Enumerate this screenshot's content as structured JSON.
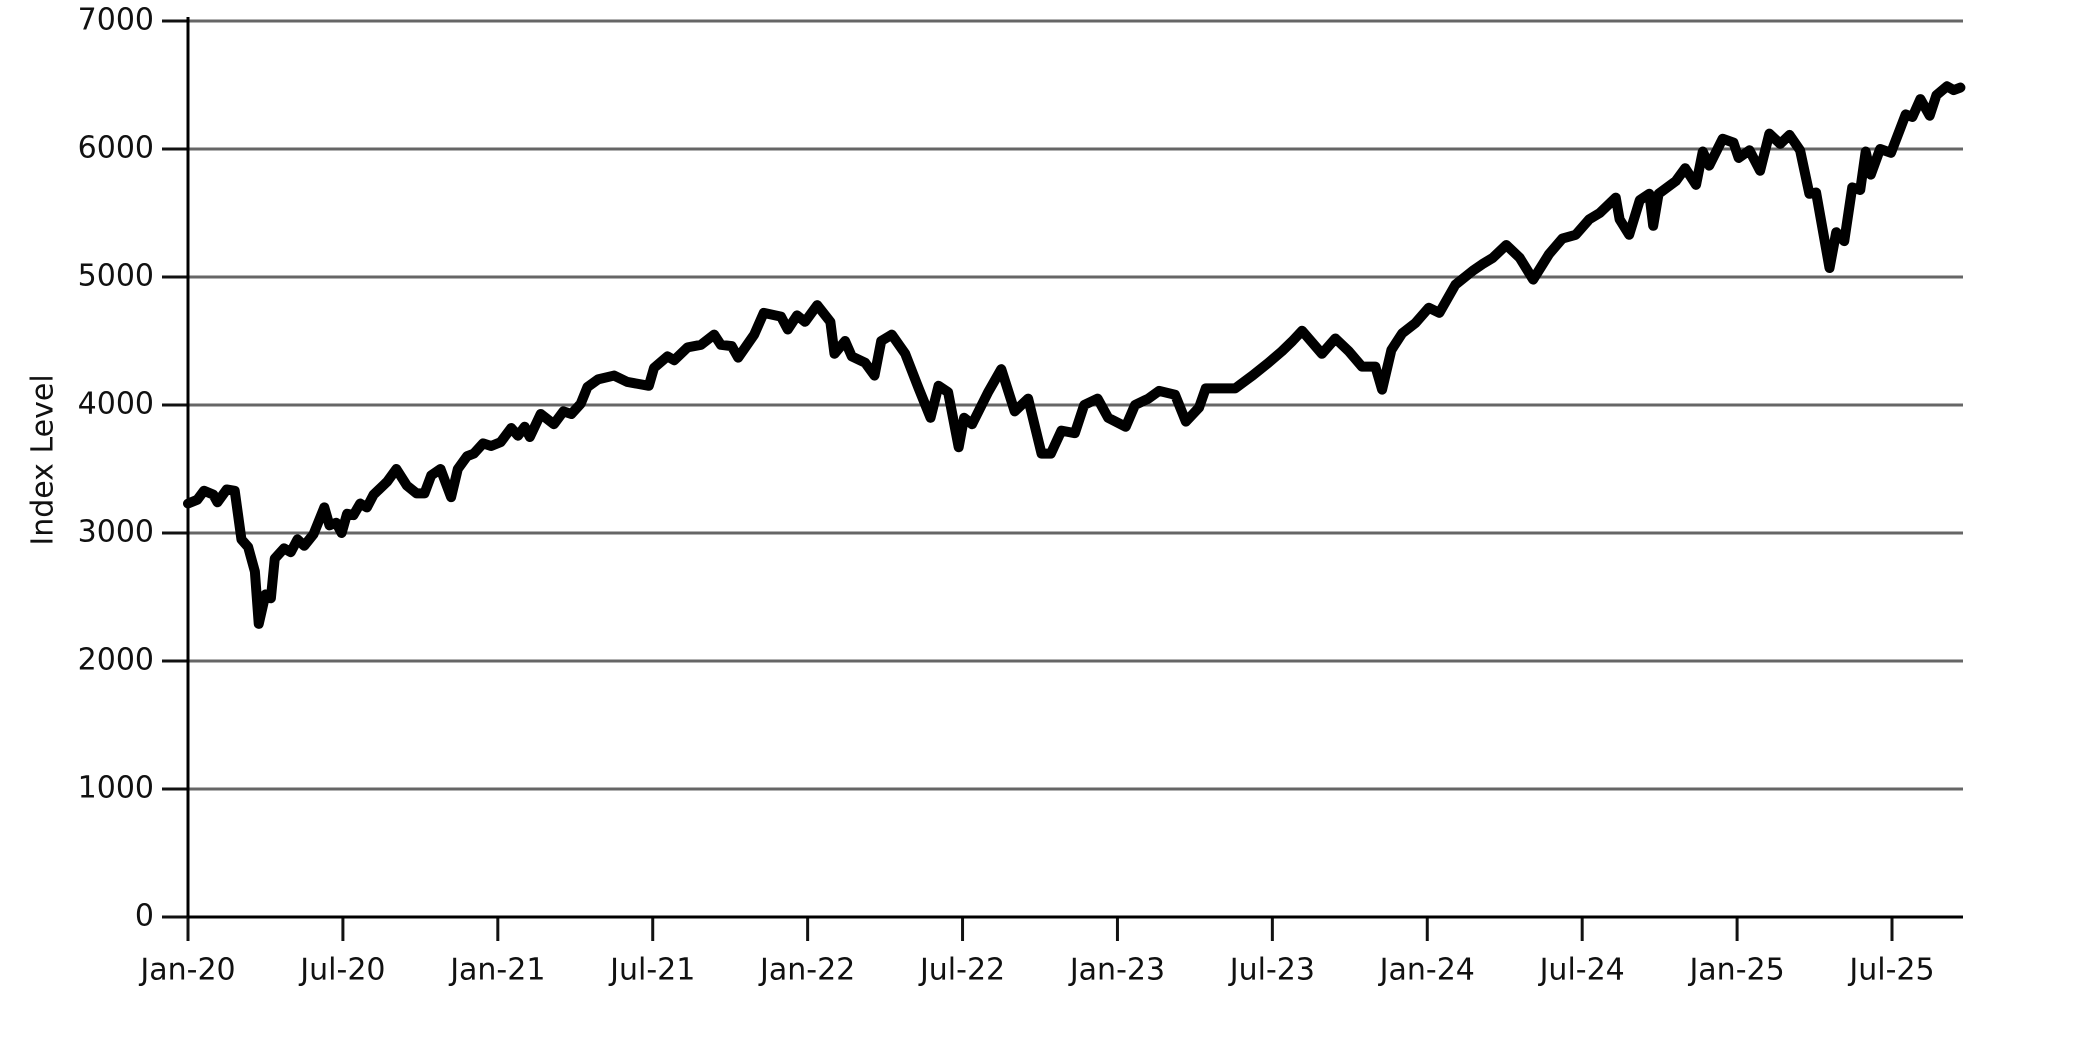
{
  "chart_data": {
    "type": "line",
    "y_label": "Index Level",
    "color": "#000000",
    "grid": true,
    "xlim": [
      0,
      68.75
    ],
    "ylim": [
      0,
      7000
    ],
    "yticks": [
      0,
      1000,
      2000,
      3000,
      4000,
      5000,
      6000,
      7000
    ],
    "xticks": [
      {
        "value": 0,
        "label": "Jan-20"
      },
      {
        "value": 6,
        "label": "Jul-20"
      },
      {
        "value": 12,
        "label": "Jan-21"
      },
      {
        "value": 18,
        "label": "Jul-21"
      },
      {
        "value": 24,
        "label": "Jan-22"
      },
      {
        "value": 30,
        "label": "Jul-22"
      },
      {
        "value": 36,
        "label": "Jan-23"
      },
      {
        "value": 42,
        "label": "Jul-23"
      },
      {
        "value": 48,
        "label": "Jan-24"
      },
      {
        "value": 54,
        "label": "Jul-24"
      },
      {
        "value": 60,
        "label": "Jan-25"
      },
      {
        "value": 66,
        "label": "Jul-25"
      }
    ],
    "x": [
      0,
      0.36,
      0.62,
      0.98,
      1.14,
      1.5,
      1.81,
      2.07,
      2.33,
      2.59,
      2.74,
      3.0,
      3.21,
      3.36,
      3.72,
      3.98,
      4.24,
      4.5,
      4.86,
      5.28,
      5.48,
      5.74,
      5.95,
      6.16,
      6.41,
      6.67,
      6.93,
      7.19,
      7.71,
      8.07,
      8.48,
      8.85,
      9.16,
      9.42,
      9.78,
      10.19,
      10.45,
      10.81,
      11.07,
      11.43,
      11.74,
      12.11,
      12.52,
      12.78,
      13.04,
      13.24,
      13.66,
      14.17,
      14.54,
      14.85,
      15.21,
      15.47,
      15.88,
      16.5,
      17.02,
      17.85,
      18.05,
      18.57,
      18.83,
      19.35,
      19.87,
      20.38,
      20.64,
      21.06,
      21.31,
      21.93,
      22.3,
      22.97,
      23.23,
      23.59,
      23.9,
      24.37,
      24.88,
      25.04,
      25.45,
      25.71,
      26.23,
      26.59,
      26.85,
      27.26,
      27.78,
      28.3,
      28.76,
      29.07,
      29.44,
      29.85,
      30.06,
      30.37,
      30.99,
      31.5,
      32.02,
      32.54,
      33.06,
      33.42,
      33.83,
      34.35,
      34.71,
      35.23,
      35.64,
      36.32,
      36.68,
      37.2,
      37.61,
      38.23,
      38.65,
      39.16,
      39.42,
      40.04,
      40.56,
      41.23,
      41.85,
      42.37,
      42.78,
      43.15,
      43.92,
      44.44,
      44.96,
      45.47,
      45.99,
      46.25,
      46.61,
      47.03,
      47.54,
      48.06,
      48.47,
      49.09,
      49.77,
      50.13,
      50.54,
      51.06,
      51.58,
      52.1,
      52.72,
      53.23,
      53.75,
      54.27,
      54.68,
      55.3,
      55.45,
      55.82,
      56.23,
      56.6,
      56.75,
      56.96,
      57.63,
      57.99,
      58.41,
      58.67,
      58.92,
      59.44,
      59.86,
      60.06,
      60.48,
      60.89,
      61.25,
      61.67,
      62.03,
      62.44,
      62.8,
      63.06,
      63.58,
      63.84,
      64.15,
      64.46,
      64.77,
      64.98,
      65.18,
      65.54,
      65.96,
      66.53,
      66.79,
      67.1,
      67.46,
      67.72,
      68.13,
      68.39,
      68.65
    ],
    "values": [
      3230,
      3260,
      3330,
      3300,
      3240,
      3340,
      3330,
      2950,
      2890,
      2700,
      2290,
      2520,
      2490,
      2800,
      2880,
      2850,
      2950,
      2900,
      2990,
      3200,
      3060,
      3080,
      3000,
      3150,
      3140,
      3230,
      3200,
      3300,
      3400,
      3500,
      3370,
      3310,
      3310,
      3450,
      3500,
      3280,
      3500,
      3600,
      3620,
      3700,
      3680,
      3710,
      3820,
      3760,
      3830,
      3750,
      3930,
      3850,
      3950,
      3930,
      4010,
      4140,
      4200,
      4230,
      4180,
      4150,
      4290,
      4380,
      4350,
      4450,
      4470,
      4550,
      4470,
      4460,
      4370,
      4550,
      4720,
      4690,
      4590,
      4700,
      4650,
      4780,
      4650,
      4400,
      4500,
      4380,
      4330,
      4230,
      4500,
      4550,
      4400,
      4130,
      3900,
      4150,
      4100,
      3670,
      3900,
      3850,
      4100,
      4280,
      3950,
      4050,
      3620,
      3620,
      3800,
      3780,
      4000,
      4050,
      3900,
      3830,
      4000,
      4050,
      4110,
      4080,
      3870,
      3980,
      4130,
      4130,
      4130,
      4230,
      4330,
      4420,
      4500,
      4580,
      4400,
      4520,
      4420,
      4300,
      4300,
      4120,
      4430,
      4560,
      4640,
      4760,
      4720,
      4940,
      5050,
      5100,
      5150,
      5250,
      5150,
      4980,
      5180,
      5300,
      5330,
      5450,
      5500,
      5620,
      5450,
      5330,
      5600,
      5650,
      5400,
      5650,
      5750,
      5850,
      5720,
      5980,
      5870,
      6080,
      6050,
      5930,
      5990,
      5830,
      6120,
      6040,
      6110,
      5990,
      5650,
      5660,
      5070,
      5350,
      5280,
      5700,
      5680,
      5980,
      5800,
      6000,
      5970,
      6270,
      6250,
      6390,
      6260,
      6420,
      6490,
      6460,
      6480
    ]
  }
}
